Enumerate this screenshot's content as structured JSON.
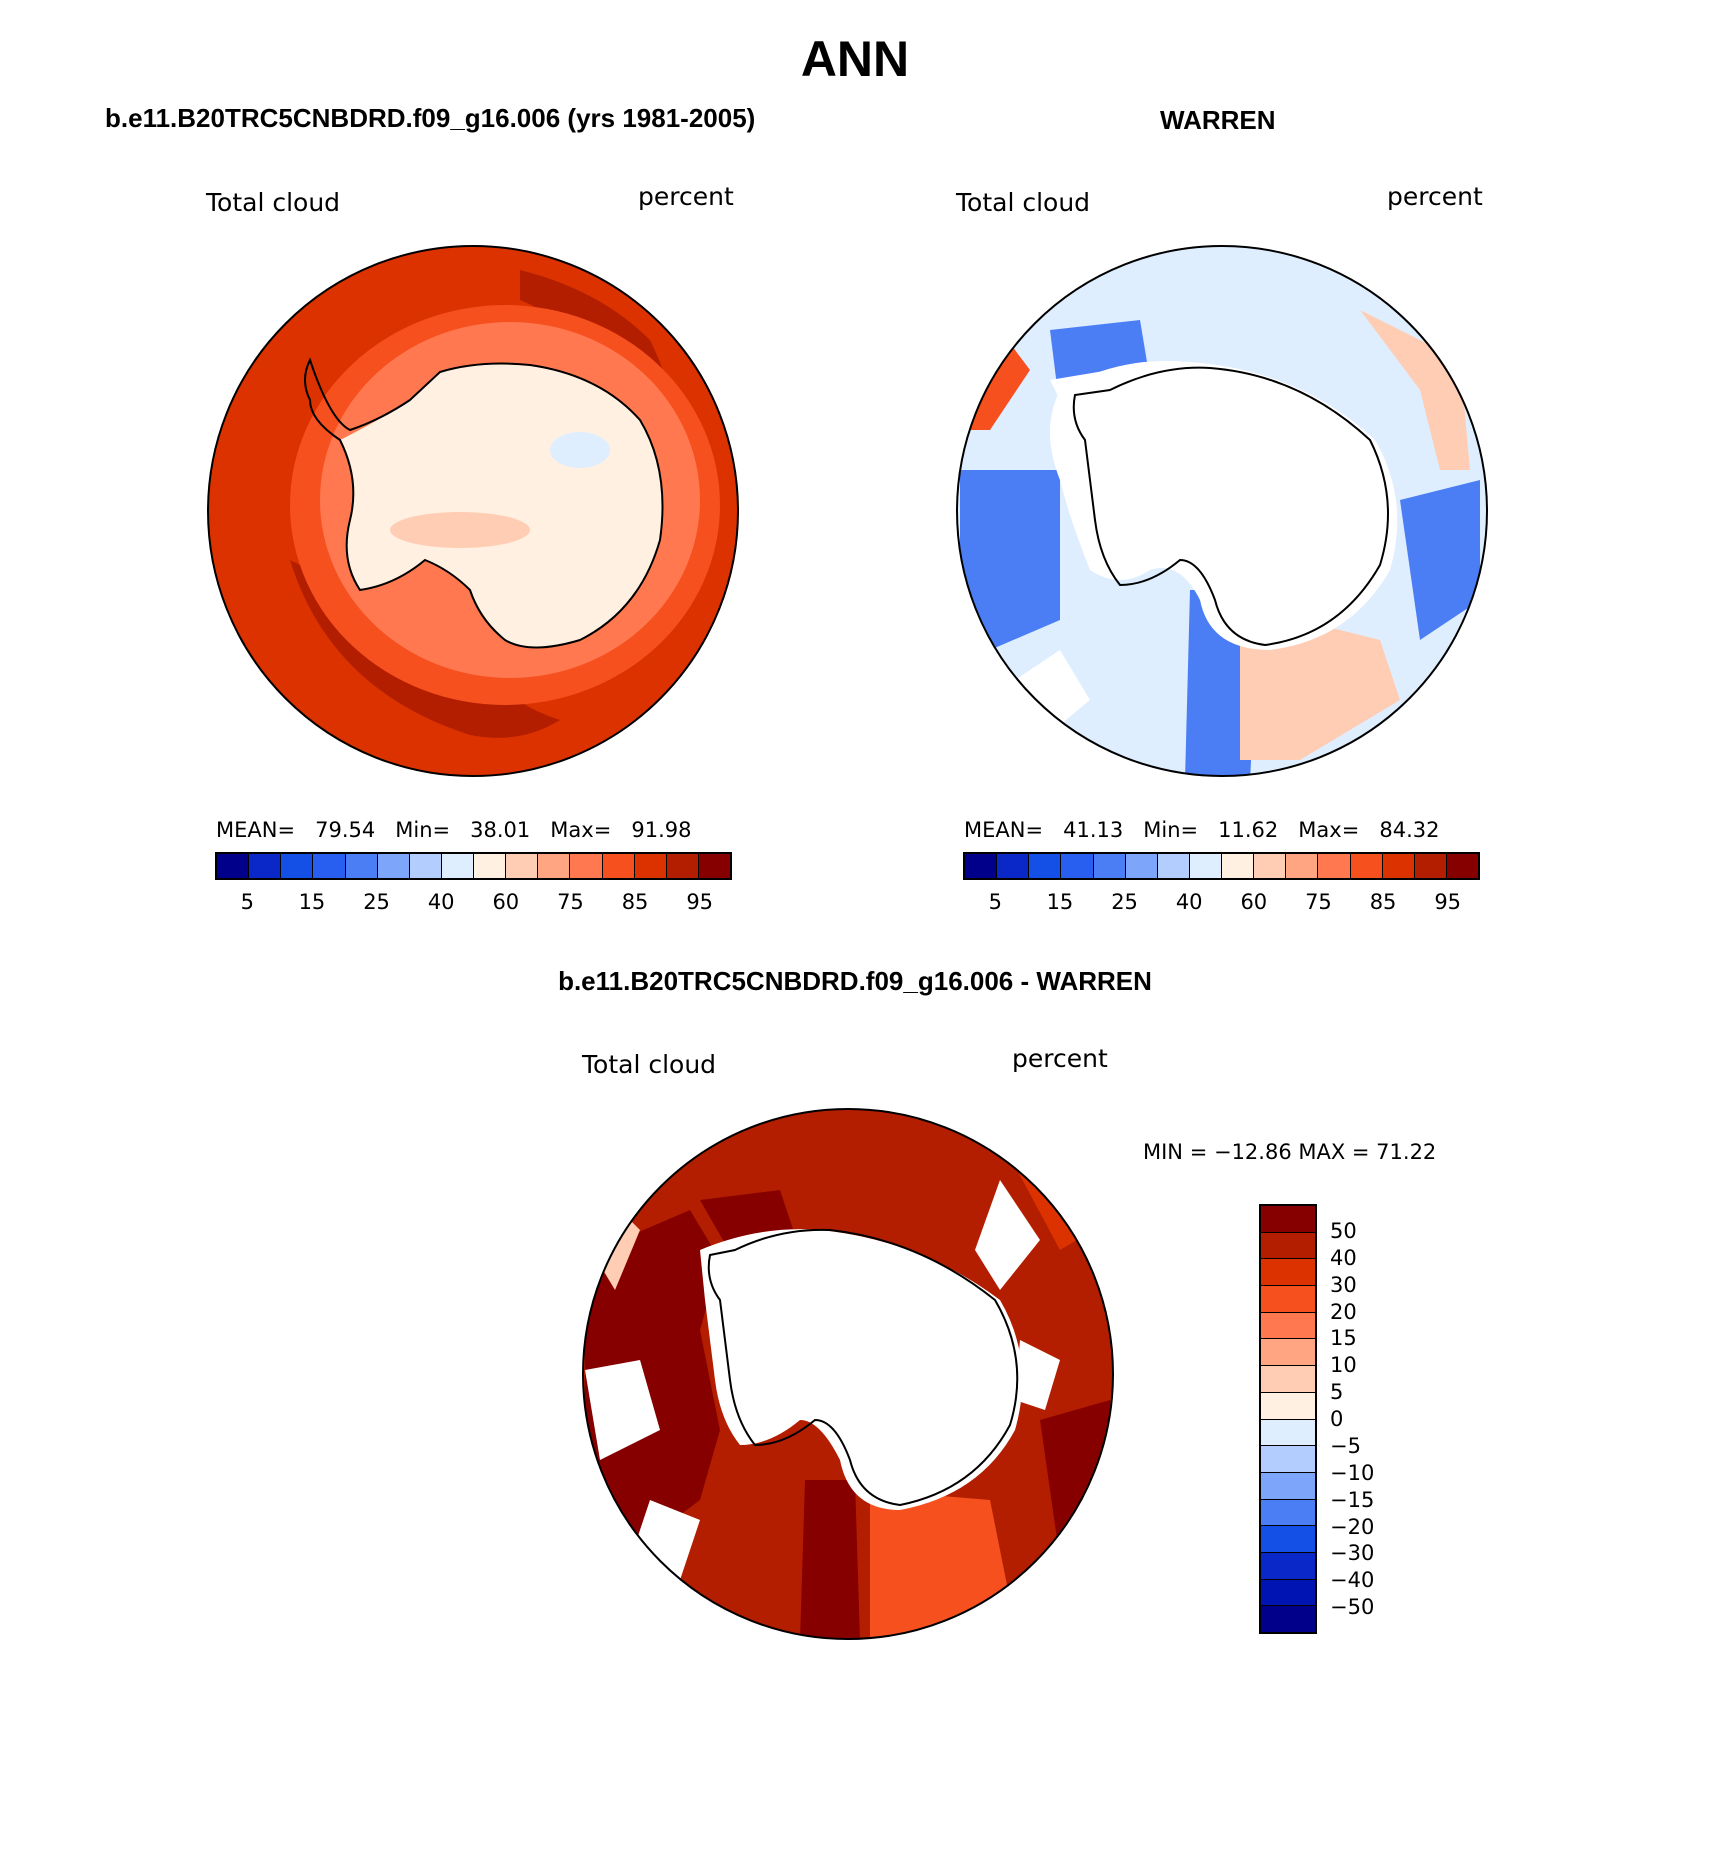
{
  "title": "ANN",
  "panels": {
    "model": {
      "title": "b.e11.B20TRC5CNBDRD.f09_g16.006 (yrs 1981-2005)",
      "left_label": "Total cloud",
      "right_label": "percent",
      "stats": {
        "mean_label": "MEAN=",
        "mean": "79.54",
        "min_label": "Min=",
        "min": "38.01",
        "max_label": "Max=",
        "max": "91.98"
      }
    },
    "obs": {
      "title": "WARREN",
      "left_label": "Total cloud",
      "right_label": "percent",
      "stats": {
        "mean_label": "MEAN=",
        "mean": "41.13",
        "min_label": "Min=",
        "min": "11.62",
        "max_label": "Max=",
        "max": "84.32"
      }
    },
    "diff": {
      "title": "b.e11.B20TRC5CNBDRD.f09_g16.006 - WARREN",
      "left_label": "Total cloud",
      "right_label": "percent",
      "minmax": "MIN = −12.86 MAX =  71.22"
    }
  },
  "colorbar_abs": {
    "colors": [
      "#00008b",
      "#0a28c8",
      "#1450e6",
      "#285ff0",
      "#4b7df5",
      "#7da5fa",
      "#b4cdff",
      "#deeeff",
      "#fff0e1",
      "#ffcdb4",
      "#ffa582",
      "#ff7850",
      "#f5501e",
      "#dc3200",
      "#b41e00",
      "#870000"
    ],
    "ticks": [
      "5",
      "15",
      "25",
      "40",
      "60",
      "75",
      "85",
      "95"
    ]
  },
  "colorbar_diff": {
    "colors": [
      "#870000",
      "#b41e00",
      "#dc3200",
      "#f5501e",
      "#ff7850",
      "#ffa582",
      "#ffcdb4",
      "#fff0e1",
      "#deeeff",
      "#b4cdff",
      "#7da5fa",
      "#4b7df5",
      "#1450e6",
      "#0a28c8",
      "#0014b4",
      "#00008b"
    ],
    "ticks": [
      "50",
      "40",
      "30",
      "20",
      "15",
      "10",
      "5",
      "0",
      "−5",
      "−10",
      "−15",
      "−20",
      "−30",
      "−40",
      "−50"
    ]
  },
  "colors": {
    "ocean_high": "#dc3200",
    "ocean_max": "#b41e00",
    "land": "#fff0e1",
    "frame": "#000000"
  }
}
